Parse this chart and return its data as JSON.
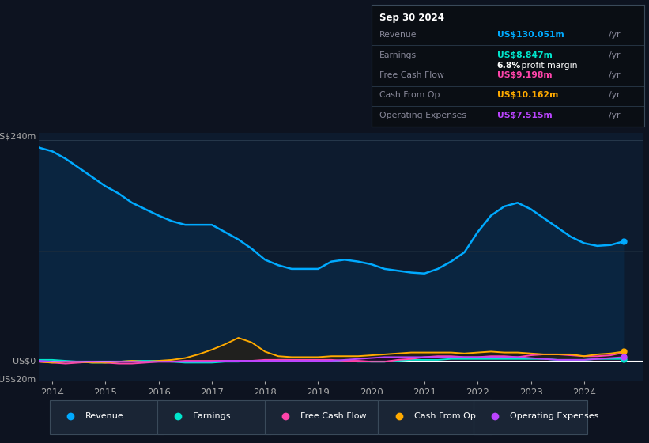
{
  "background_color": "#0d1320",
  "plot_bg_color": "#0d1b2e",
  "info_box": {
    "date": "Sep 30 2024",
    "revenue_val": "US$130.051m",
    "earnings_val": "US$8.847m",
    "profit_margin": "6.8%",
    "fcf_val": "US$9.198m",
    "cash_op_val": "US$10.162m",
    "op_exp_val": "US$7.515m"
  },
  "revenue_color": "#00aaff",
  "earnings_color": "#00e5cc",
  "free_cash_flow_color": "#ff44aa",
  "cash_from_op_color": "#ffaa00",
  "operating_expenses_color": "#bb44ff",
  "legend_items": [
    {
      "label": "Revenue",
      "color": "#00aaff"
    },
    {
      "label": "Earnings",
      "color": "#00e5cc"
    },
    {
      "label": "Free Cash Flow",
      "color": "#ff44aa"
    },
    {
      "label": "Cash From Op",
      "color": "#ffaa00"
    },
    {
      "label": "Operating Expenses",
      "color": "#bb44ff"
    }
  ],
  "ylim": [
    -22,
    248
  ],
  "xlim": [
    2013.75,
    2025.1
  ]
}
